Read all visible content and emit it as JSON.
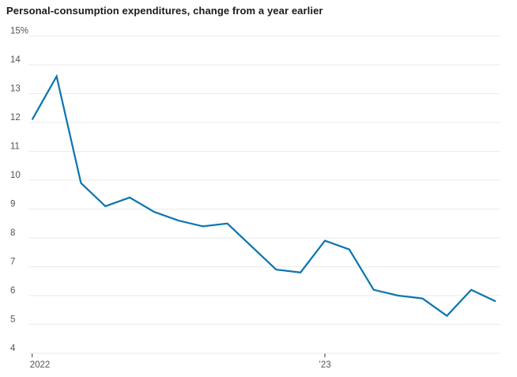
{
  "chart_data": {
    "type": "line",
    "title": "Personal-consumption expenditures, change from a year earlier",
    "x": [
      "Jan 2022",
      "Feb 2022",
      "Mar 2022",
      "Apr 2022",
      "May 2022",
      "Jun 2022",
      "Jul 2022",
      "Aug 2022",
      "Sep 2022",
      "Oct 2022",
      "Nov 2022",
      "Dec 2022",
      "Jan 2023",
      "Feb 2023",
      "Mar 2023",
      "Apr 2023",
      "May 2023",
      "Jun 2023",
      "Jul 2023",
      "Aug 2023"
    ],
    "values": [
      12.1,
      13.6,
      9.9,
      9.1,
      9.4,
      8.9,
      8.6,
      8.4,
      8.5,
      7.7,
      6.9,
      6.8,
      7.9,
      7.6,
      6.2,
      6.0,
      5.9,
      5.3,
      6.2,
      5.8
    ],
    "unit": "%",
    "ylim": [
      4,
      15
    ],
    "y_ticks": [
      {
        "value": 15,
        "label": "15%"
      },
      {
        "value": 14,
        "label": "14"
      },
      {
        "value": 13,
        "label": "13"
      },
      {
        "value": 12,
        "label": "12"
      },
      {
        "value": 11,
        "label": "11"
      },
      {
        "value": 10,
        "label": "10"
      },
      {
        "value": 9,
        "label": "9"
      },
      {
        "value": 8,
        "label": "8"
      },
      {
        "value": 7,
        "label": "7"
      },
      {
        "value": 6,
        "label": "6"
      },
      {
        "value": 5,
        "label": "5"
      },
      {
        "value": 4,
        "label": "4"
      }
    ],
    "x_ticks": [
      {
        "month_index": 0,
        "label": "2022",
        "align": "start"
      },
      {
        "month_index": 12,
        "label": "’23",
        "align": "middle"
      }
    ],
    "grid": "horizontal",
    "legend": "none",
    "colors": {
      "line": "#0e76b0",
      "grid": "#ededed",
      "axis_label": "#555555",
      "tick_mark": "#333333",
      "title_text": "#1a1a1a"
    }
  }
}
